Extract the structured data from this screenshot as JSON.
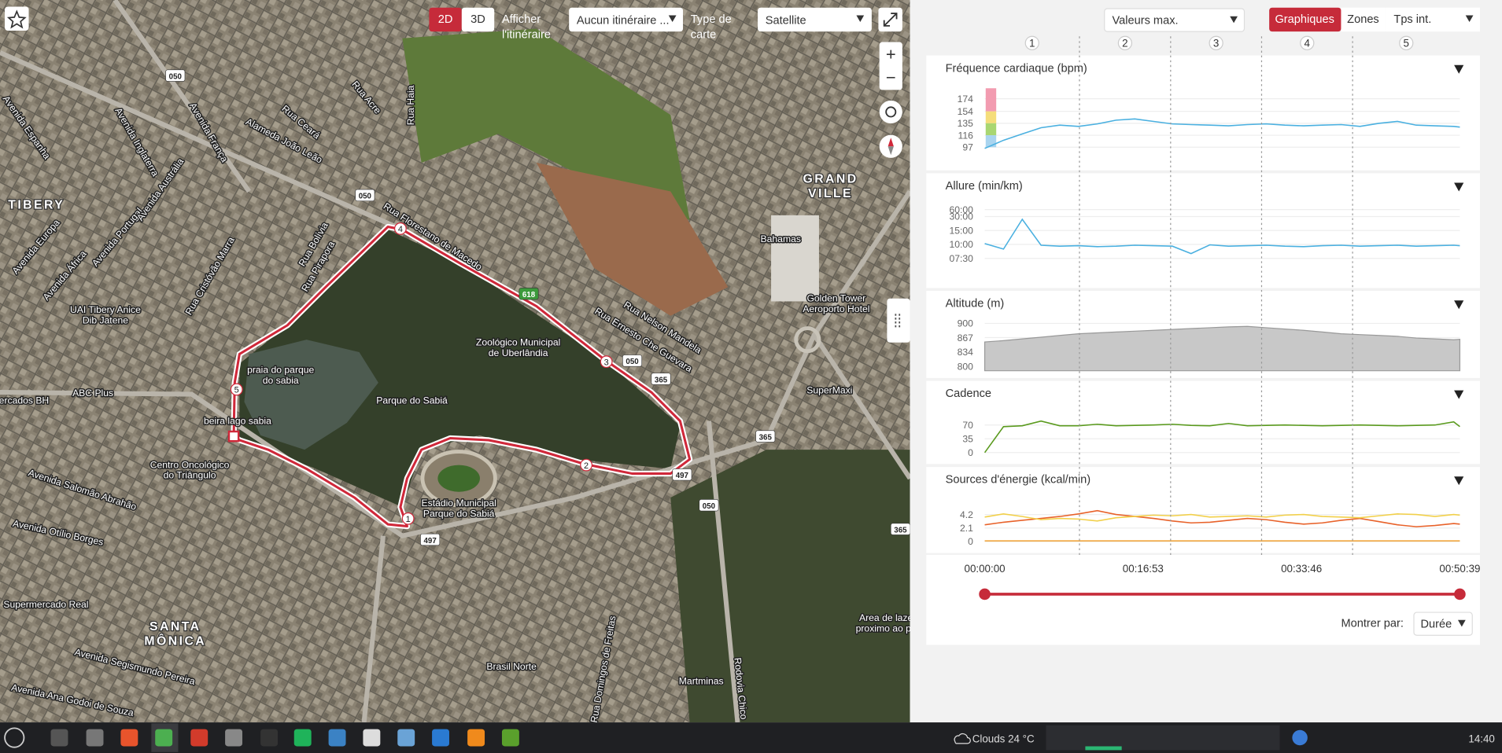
{
  "map": {
    "controls": {
      "mode_2d": "2D",
      "mode_3d": "3D",
      "show_route": [
        "Afficher",
        "l'itinéraire"
      ],
      "route_select": "Aucun itinéraire ...",
      "map_type_label": [
        "Type de",
        "carte"
      ],
      "map_type": "Satellite",
      "zoom_in": "+",
      "zoom_out": "−"
    },
    "labels": [
      [
        "TIBERY"
      ],
      [
        "GRAND",
        "VILLE"
      ],
      [
        "SANTA",
        "MÔNICA"
      ],
      [
        "Zoológico Municipal",
        "de Uberlândia"
      ],
      [
        "Parque do Sabiá"
      ],
      [
        "praia do parque",
        "do sabia"
      ],
      [
        "beira lago sabia"
      ],
      [
        "Estádio Municipal",
        "Parque do Sabiá"
      ],
      [
        "Centro Oncológico",
        "do Triângulo"
      ],
      [
        "UAI Tibery Anice",
        "Dib Jatene"
      ],
      [
        "ABC Plus"
      ],
      [
        "ercados BH"
      ],
      [
        "Supermercado Real"
      ],
      [
        "Brasil Norte"
      ],
      [
        "Martminas"
      ],
      [
        "SuperMaxi"
      ],
      [
        "Golden Tower",
        "Aeroporto Hotel"
      ],
      [
        "Bahamas"
      ],
      [
        "Area de laze",
        "proximo ao pa"
      ],
      [
        "Alameda João Leão"
      ],
      [
        "Rua Florestano de Macedo"
      ],
      [
        "Rua Nelson Mandela"
      ],
      [
        "Rua Ernesto Che Guevara"
      ],
      [
        "Avenida Salomão Abrahão"
      ],
      [
        "Avenida Otílio Borges"
      ],
      [
        "Avenida Segismundo Pereira"
      ],
      [
        "Avenida Ana Godoi de Souza"
      ],
      [
        "Rua Domingos de Freitas"
      ],
      [
        "Rodovia Chico"
      ],
      [
        "Rua Haia"
      ],
      [
        "Rua Acre"
      ],
      [
        "Avenida Europa"
      ],
      [
        "Avenida África"
      ],
      [
        "Avenida Portugal"
      ],
      [
        "Avenida Espanha"
      ],
      [
        "Avenida Inglaterra"
      ],
      [
        "Avenida França"
      ],
      [
        "Rua Bolívia"
      ],
      [
        "Rua Pirapora"
      ],
      [
        "Rua Cristóvão Marra"
      ],
      [
        "Rua Ceará"
      ],
      [
        "Avenida Austrália"
      ]
    ],
    "road_shields": [
      "050",
      "050",
      "050",
      "050",
      "618",
      "365",
      "365",
      "365",
      "497",
      "497"
    ],
    "route_markers": [
      "1",
      "2",
      "3",
      "4",
      "5"
    ]
  },
  "panel": {
    "values_select": "Valeurs max.",
    "tabs": [
      "Graphiques",
      "Zones",
      "Tps int."
    ],
    "laps": [
      "1",
      "2",
      "3",
      "4",
      "5"
    ],
    "lap_boundaries": [
      606,
      1189,
      1771,
      2353
    ],
    "show_by_label": "Montrer par:",
    "show_by": "Durée",
    "slider": [
      0,
      3039
    ],
    "zone_colors": [
      "#f29bb0",
      "#f5dd7a",
      "#a9d672",
      "#a9d4ef"
    ]
  },
  "time_axis": {
    "x": [
      0,
      120,
      240,
      360,
      480,
      600,
      720,
      840,
      960,
      1080,
      1200,
      1320,
      1440,
      1560,
      1680,
      1800,
      1920,
      2040,
      2160,
      2280,
      2400,
      2520,
      2640,
      2760,
      2880,
      3000,
      3039
    ],
    "xlim": [
      0,
      3039
    ],
    "xticks": [
      {
        "value": 0,
        "label": "00:00:00"
      },
      {
        "value": 1013,
        "label": "00:16:53"
      },
      {
        "value": 2026,
        "label": "00:33:46"
      },
      {
        "value": 3039,
        "label": "00:50:39"
      }
    ]
  },
  "chart_data": [
    {
      "type": "line",
      "title": "Fréquence cardiaque (bpm)",
      "color": "#4ab0e0",
      "ylim": [
        80,
        185
      ],
      "yticks": [
        174,
        154,
        135,
        116,
        97
      ],
      "values": [
        95,
        108,
        118,
        128,
        132,
        130,
        134,
        140,
        142,
        138,
        134,
        133,
        132,
        131,
        133,
        134,
        132,
        131,
        132,
        133,
        130,
        135,
        138,
        132,
        131,
        130,
        129
      ]
    },
    {
      "type": "line",
      "scale": "reciprocal",
      "title": "Allure (min/km)",
      "color": "#4ab0e0",
      "ylim": [
        6.5,
        60
      ],
      "yticks": [
        {
          "value": 7.5,
          "label": "07:30"
        },
        {
          "value": 10,
          "label": "10:00"
        },
        {
          "value": 15,
          "label": "15:00"
        },
        {
          "value": 30,
          "label": "30:00"
        },
        {
          "value": 60,
          "label": "60:00"
        }
      ],
      "values": [
        10.2,
        9.0,
        25,
        9.8,
        9.6,
        9.7,
        9.5,
        9.6,
        9.8,
        9.7,
        9.6,
        8.2,
        9.9,
        9.6,
        9.7,
        9.8,
        9.6,
        9.5,
        9.7,
        9.8,
        9.6,
        9.7,
        9.8,
        9.6,
        9.7,
        9.8,
        9.7
      ]
    },
    {
      "type": "area",
      "title": "Altitude (m)",
      "color": "#aaaaaa",
      "ylim": [
        790,
        910
      ],
      "yticks": [
        900,
        867,
        834,
        800
      ],
      "values": [
        857,
        860,
        864,
        868,
        872,
        876,
        878,
        880,
        882,
        884,
        886,
        888,
        890,
        892,
        893,
        890,
        887,
        884,
        880,
        876,
        874,
        872,
        870,
        866,
        864,
        862,
        863
      ]
    },
    {
      "type": "line",
      "title": "Cadence",
      "color": "#5a9a1e",
      "ylim": [
        0,
        90
      ],
      "yticks": [
        70,
        35,
        0
      ],
      "values": [
        0,
        66,
        68,
        80,
        68,
        68,
        72,
        68,
        69,
        70,
        72,
        69,
        68,
        74,
        68,
        69,
        70,
        69,
        68,
        69,
        70,
        69,
        68,
        69,
        70,
        78,
        66
      ]
    },
    {
      "type": "multiline",
      "title": "Sources d'énergie (kcal/min)",
      "ylim": [
        0,
        5.5
      ],
      "yticks": [
        4.2,
        2.1,
        0
      ],
      "series": [
        {
          "color": "#e8622a",
          "values": [
            2.6,
            3.0,
            3.3,
            3.6,
            3.9,
            4.3,
            4.8,
            4.2,
            3.9,
            3.6,
            3.2,
            2.9,
            3.0,
            3.3,
            3.6,
            3.4,
            3.0,
            2.7,
            2.9,
            3.3,
            3.6,
            3.1,
            2.6,
            2.3,
            2.5,
            2.8,
            2.7
          ]
        },
        {
          "color": "#f2d04a",
          "values": [
            3.8,
            4.3,
            3.9,
            3.4,
            3.6,
            3.5,
            3.2,
            3.7,
            3.9,
            4.1,
            4.0,
            4.2,
            3.8,
            3.9,
            4.0,
            3.8,
            4.1,
            4.2,
            3.9,
            3.8,
            3.7,
            4.0,
            4.3,
            4.2,
            3.9,
            4.2,
            4.1
          ]
        },
        {
          "color": "#f0a030",
          "values": [
            0.1,
            0.1,
            0.1,
            0.1,
            0.1,
            0.1,
            0.1,
            0.1,
            0.1,
            0.1,
            0.1,
            0.1,
            0.1,
            0.1,
            0.1,
            0.1,
            0.1,
            0.1,
            0.1,
            0.1,
            0.1,
            0.1,
            0.1,
            0.1,
            0.1,
            0.1,
            0.1
          ]
        }
      ]
    }
  ],
  "taskbar": {
    "weather": "Clouds 24 °C",
    "clock": "14:40"
  }
}
